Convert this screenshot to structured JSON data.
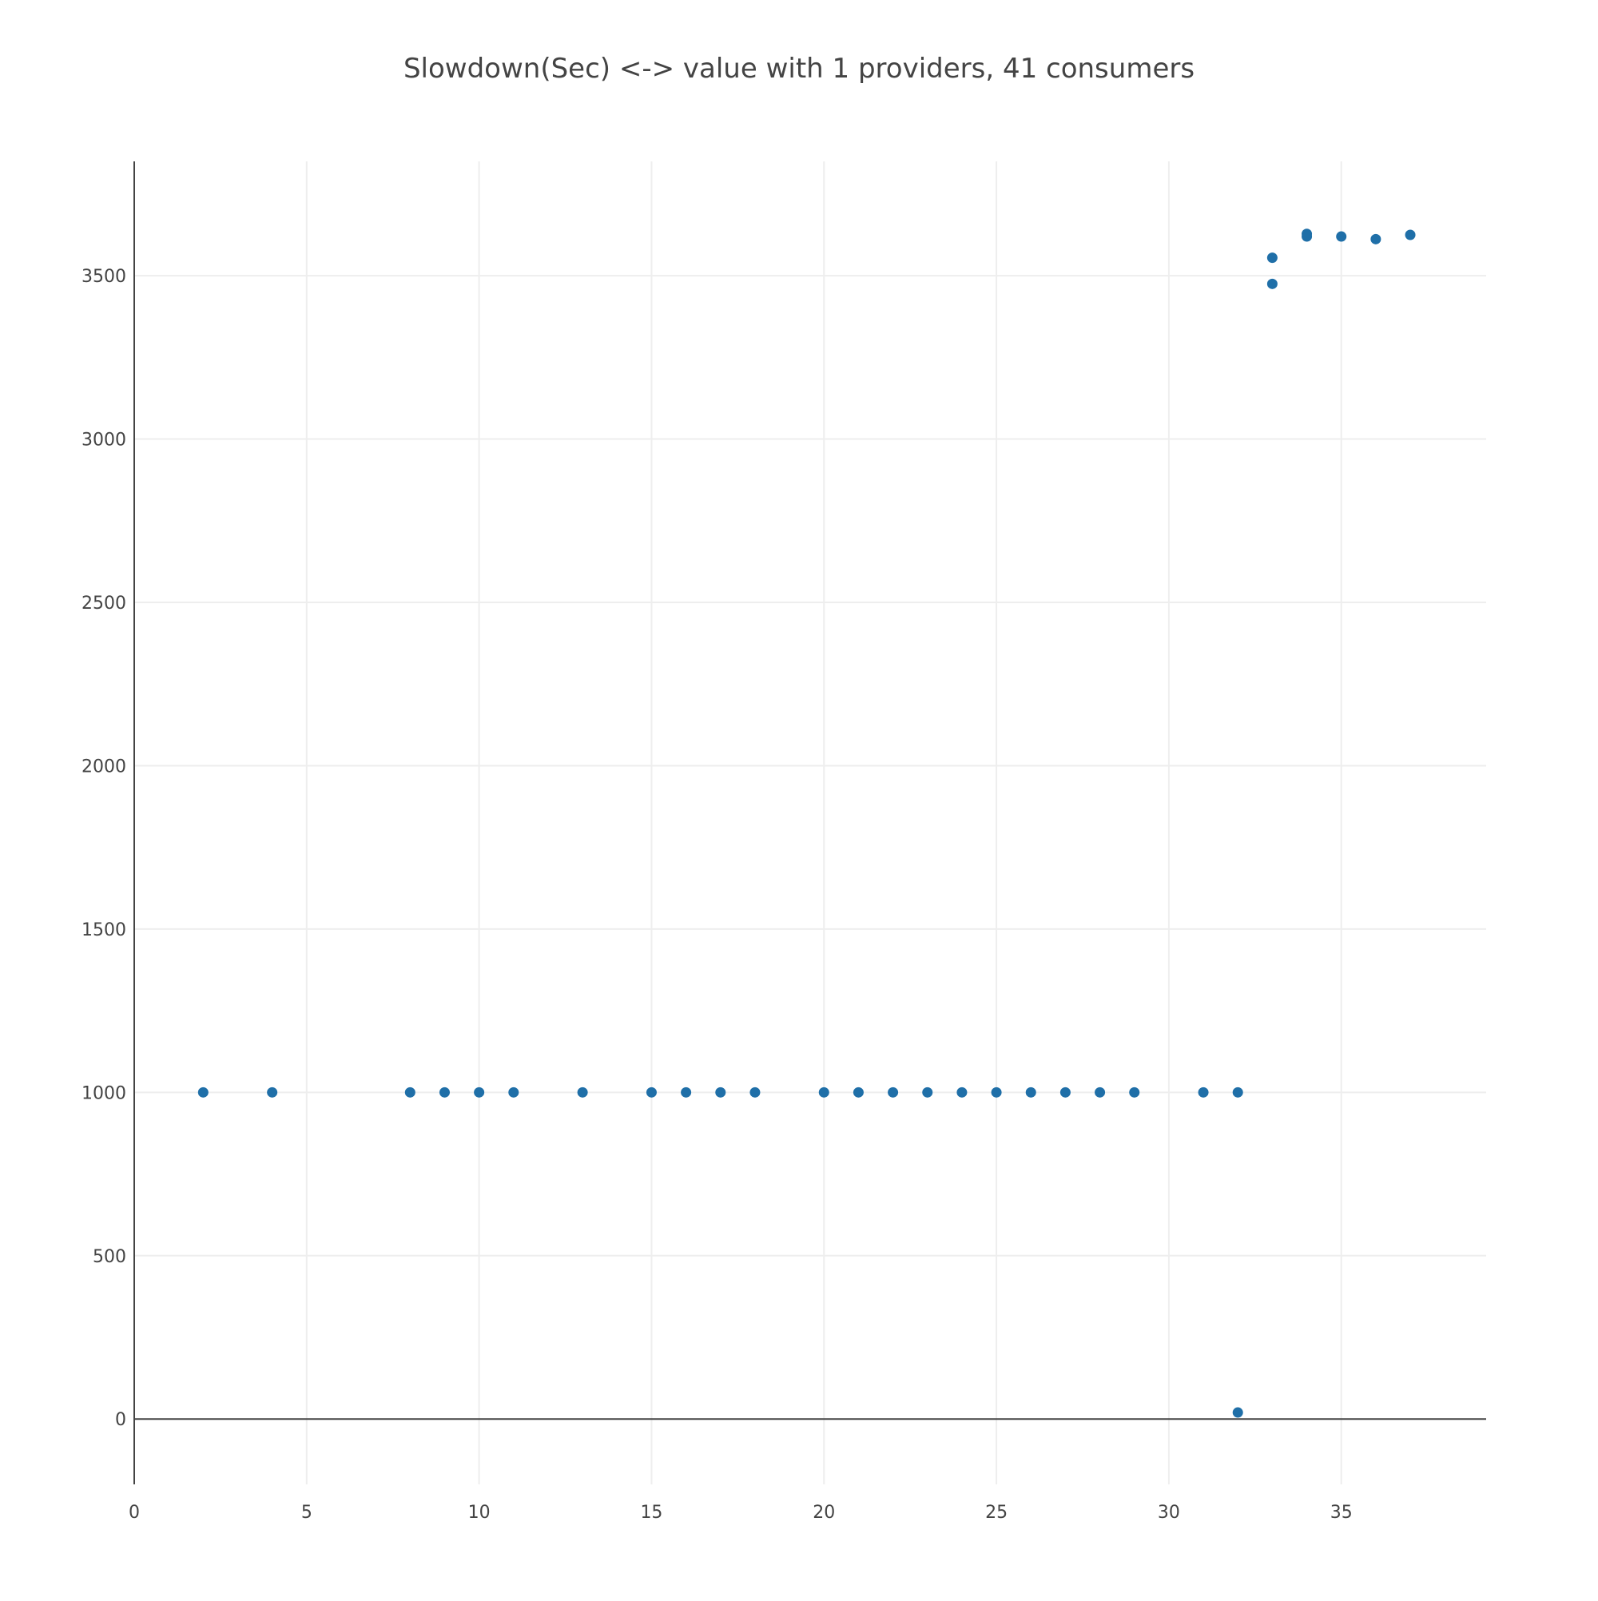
{
  "chart_data": {
    "type": "scatter",
    "title": "Slowdown(Sec) <-> value with 1 providers, 41 consumers",
    "xlabel": "",
    "ylabel": "",
    "xlim": [
      0,
      39.2
    ],
    "ylim": [
      -200,
      3850
    ],
    "xticks": [
      0,
      5,
      10,
      15,
      20,
      25,
      30,
      35
    ],
    "yticks": [
      0,
      500,
      1000,
      1500,
      2000,
      2500,
      3000,
      3500
    ],
    "grid": true,
    "legend": "none",
    "marker_color": "#1f6fa8",
    "series": [
      {
        "x": [
          2,
          4,
          8,
          9,
          10,
          11,
          13,
          15,
          16,
          17,
          18,
          20,
          21,
          22,
          23,
          24,
          25,
          26,
          27,
          28,
          29,
          31,
          32,
          32,
          33,
          33,
          34,
          34,
          35,
          36,
          37
        ],
        "y": [
          1000,
          1000,
          1000,
          1000,
          1000,
          1000,
          1000,
          1000,
          1000,
          1000,
          1000,
          1000,
          1000,
          1000,
          1000,
          1000,
          1000,
          1000,
          1000,
          1000,
          1000,
          1000,
          1000,
          20,
          3555,
          3475,
          3628,
          3620,
          3620,
          3612,
          3625
        ]
      }
    ]
  }
}
